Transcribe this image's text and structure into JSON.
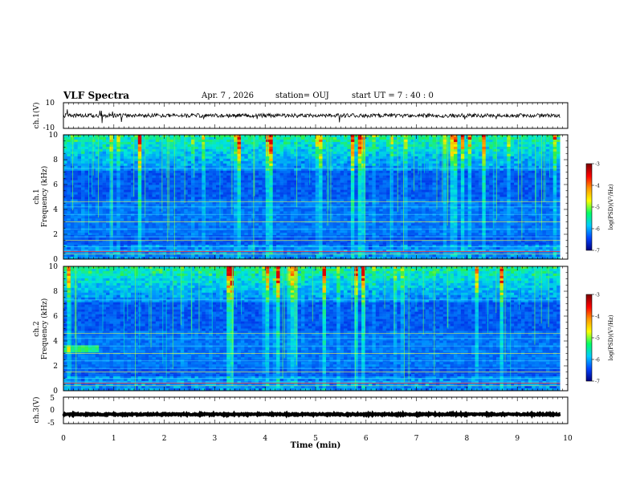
{
  "header": {
    "title": "VLF Spectra",
    "date": "Apr. 7 , 2026",
    "station": "station= OUJ",
    "start_time": "start  UT =   7 : 40 : 0"
  },
  "colorbar": {
    "label": "log(PSD)(V²/Hz)",
    "ticks": [
      "-3",
      "-4",
      "-5",
      "-6",
      "-7"
    ],
    "colors": [
      "#7a0000",
      "#ff0000",
      "#ff9900",
      "#ffff00",
      "#00ff66",
      "#00ccff",
      "#0044ff",
      "#000080"
    ]
  },
  "chart_data": [
    {
      "type": "line",
      "name": "ch1-waveform",
      "ylabel": "ch.1(V)",
      "ylim": [
        -10,
        10
      ],
      "yticks": [
        "10",
        "-10"
      ],
      "baseline": 0,
      "noise_amplitude": 1.5
    },
    {
      "type": "heatmap",
      "name": "ch1-spectrogram",
      "ylabel_channel": "ch.1",
      "ylabel": "Frequency (kHz)",
      "ylim": [
        0,
        10
      ],
      "yticks": [
        "0",
        "2",
        "4",
        "6",
        "8",
        "10"
      ],
      "x_range": [
        0,
        9.85
      ]
    },
    {
      "type": "heatmap",
      "name": "ch2-spectrogram",
      "ylabel_channel": "ch.2",
      "ylabel": "Frequency (kHz)",
      "ylim": [
        0,
        10
      ],
      "yticks": [
        "0",
        "2",
        "4",
        "6",
        "8",
        "10"
      ],
      "x_range": [
        0,
        9.85
      ]
    },
    {
      "type": "line",
      "name": "ch3-waveform",
      "ylabel": "ch.3(V)",
      "ylim": [
        -5,
        5
      ],
      "yticks": [
        "5",
        "0",
        "-5"
      ],
      "baseline": -1.5,
      "noise_amplitude": 0.25
    }
  ],
  "x_axis": {
    "label": "Time (min)",
    "ticks": [
      "0",
      "1",
      "2",
      "3",
      "4",
      "5",
      "6",
      "7",
      "8",
      "9",
      "10"
    ],
    "range": [
      0,
      10
    ]
  }
}
